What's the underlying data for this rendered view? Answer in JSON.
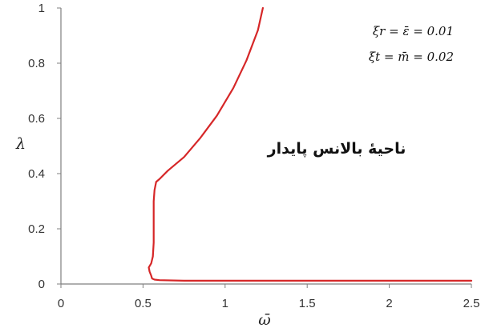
{
  "chart_data": {
    "type": "line",
    "xlabel": "ω̄",
    "ylabel": "λ",
    "xlim": [
      0,
      2.5
    ],
    "ylim": [
      0,
      1
    ],
    "x_ticks": [
      "0",
      "0.5",
      "1",
      "1.5",
      "2",
      "2.5"
    ],
    "y_ticks": [
      "0",
      "0.2",
      "0.4",
      "0.6",
      "0.8",
      "1"
    ],
    "x_tick_values": [
      0,
      0.5,
      1,
      1.5,
      2,
      2.5
    ],
    "y_tick_values": [
      0,
      0.2,
      0.4,
      0.6,
      0.8,
      1
    ],
    "grid": false,
    "legend": "none",
    "series_color": "#d62728",
    "annotations": {
      "line1": "ξr = ε̄ = 0.01",
      "line2": "ξt = m̄ = 0.02",
      "region_label": "ناحیهٔ بالانس پایدار"
    },
    "series": [
      {
        "x": [
          2.5,
          2.0,
          1.5,
          1.0,
          0.75,
          0.6,
          0.57,
          0.555,
          0.55,
          0.54,
          0.535,
          0.55,
          0.56,
          0.565,
          0.565,
          0.565,
          0.565,
          0.57,
          0.58,
          0.6,
          0.65,
          0.75,
          0.85,
          0.95,
          1.05,
          1.13,
          1.2,
          1.23
        ],
        "y": [
          0.012,
          0.012,
          0.012,
          0.012,
          0.012,
          0.014,
          0.016,
          0.02,
          0.03,
          0.045,
          0.06,
          0.075,
          0.1,
          0.15,
          0.2,
          0.25,
          0.3,
          0.34,
          0.37,
          0.38,
          0.41,
          0.46,
          0.53,
          0.61,
          0.71,
          0.81,
          0.92,
          1.0
        ]
      }
    ]
  }
}
